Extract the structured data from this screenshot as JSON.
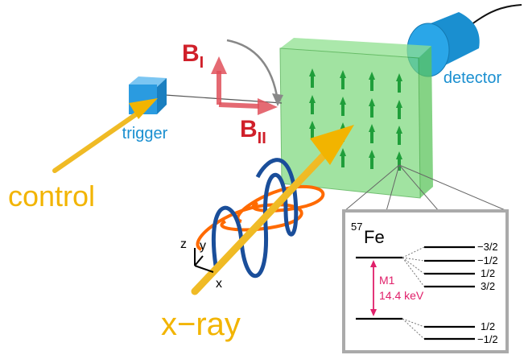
{
  "labels": {
    "b_perp": {
      "symbol": "B",
      "subscript": "I"
    },
    "b_par": {
      "symbol": "B",
      "subscript": "II"
    },
    "trigger": "trigger",
    "control": "control",
    "detector": "detector",
    "xray": "x−ray"
  },
  "axes": {
    "z": "z",
    "y": "y",
    "x": "x"
  },
  "inset": {
    "isotope": {
      "mass": "57",
      "element": "Fe"
    },
    "transition": "M1",
    "energy": "14.4 keV",
    "excited_levels": [
      "−3/2",
      "−1/2",
      "1/2",
      "3/2"
    ],
    "ground_levels": [
      "1/2",
      "−1/2"
    ]
  }
}
